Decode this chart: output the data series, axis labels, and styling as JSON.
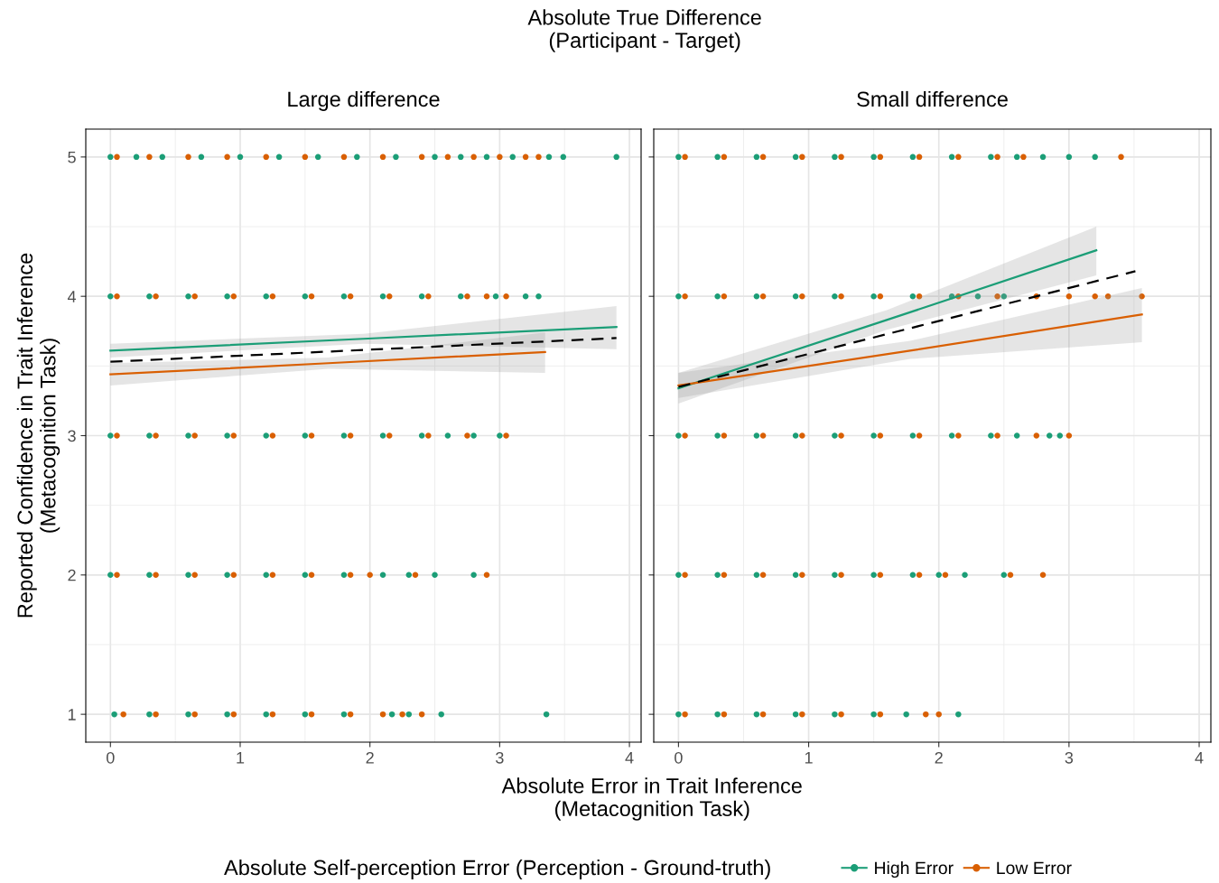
{
  "chart_data": [
    {
      "type": "scatter",
      "title": "Large difference",
      "annotations": [
        "Absolute True Difference\n(Participant - Target)"
      ],
      "xlabel": "Absolute Error in Trait Inference\n(Metacognition Task)",
      "ylabel": "Reported Confidence in Trait Inference\n(Metacognition Task)",
      "legend_title": "Absolute Self-perception Error (Perception - Ground-truth)",
      "legend": "bottom",
      "grid": true,
      "xlim": [
        -0.19,
        4.09
      ],
      "ylim": [
        0.8,
        5.2
      ],
      "xticks": [
        0,
        1,
        2,
        3,
        4
      ],
      "yticks": [
        1,
        2,
        3,
        4,
        5
      ],
      "series": [
        {
          "name": "High Error",
          "marker": "circle",
          "color": "#1b9e77",
          "x": [
            0,
            0.2,
            0.4,
            0.7,
            1.0,
            1.3,
            1.6,
            1.9,
            2.2,
            2.5,
            2.7,
            2.9,
            3.1,
            3.38,
            3.49,
            3.9,
            0,
            0.3,
            0.6,
            0.9,
            1.2,
            1.5,
            1.8,
            2.1,
            2.4,
            2.7,
            2.97,
            3.2,
            3.3,
            0,
            0.3,
            0.6,
            0.9,
            1.2,
            1.5,
            1.8,
            2.1,
            2.4,
            2.6,
            2.8,
            3.0,
            0,
            0.3,
            0.6,
            0.9,
            1.2,
            1.5,
            1.8,
            2.1,
            2.3,
            2.5,
            2.8,
            0.03,
            0.3,
            0.6,
            0.9,
            1.2,
            1.5,
            1.8,
            2.17,
            2.3,
            2.55,
            3.36
          ],
          "values": [
            5,
            5,
            5,
            5,
            5,
            5,
            5,
            5,
            5,
            5,
            5,
            5,
            5,
            5,
            5,
            5,
            4,
            4,
            4,
            4,
            4,
            4,
            4,
            4,
            4,
            4,
            4,
            4,
            4,
            3,
            3,
            3,
            3,
            3,
            3,
            3,
            3,
            3,
            3,
            3,
            3,
            2,
            2,
            2,
            2,
            2,
            2,
            2,
            2,
            2,
            2,
            2,
            1,
            1,
            1,
            1,
            1,
            1,
            1,
            1,
            1,
            1,
            1
          ]
        },
        {
          "name": "Low Error",
          "marker": "circle",
          "color": "#d95f02",
          "x": [
            0.05,
            0.3,
            0.6,
            0.9,
            1.2,
            1.5,
            1.8,
            2.1,
            2.4,
            2.6,
            2.8,
            3.0,
            3.2,
            3.3,
            0.05,
            0.35,
            0.65,
            0.95,
            1.25,
            1.55,
            1.85,
            2.15,
            2.45,
            2.75,
            2.9,
            3.05,
            0.05,
            0.35,
            0.65,
            0.95,
            1.25,
            1.55,
            1.85,
            2.15,
            2.45,
            2.75,
            3.05,
            0.05,
            0.35,
            0.65,
            0.95,
            1.25,
            1.55,
            1.85,
            2.0,
            2.35,
            2.9,
            0.1,
            0.35,
            0.65,
            0.95,
            1.25,
            1.55,
            1.85,
            2.1,
            2.25,
            2.4
          ],
          "values": [
            5,
            5,
            5,
            5,
            5,
            5,
            5,
            5,
            5,
            5,
            5,
            5,
            5,
            5,
            4,
            4,
            4,
            4,
            4,
            4,
            4,
            4,
            4,
            4,
            4,
            4,
            3,
            3,
            3,
            3,
            3,
            3,
            3,
            3,
            3,
            3,
            3,
            2,
            2,
            2,
            2,
            2,
            2,
            2,
            2,
            2,
            2,
            1,
            1,
            1,
            1,
            1,
            1,
            1,
            1,
            1,
            1
          ]
        },
        {
          "type": "line",
          "color": "#1b9e77",
          "x": [
            0,
            1.95,
            3.9
          ],
          "values": [
            3.61,
            3.695,
            3.78
          ],
          "lower": [
            3.56,
            3.66,
            3.62
          ],
          "upper": [
            3.66,
            3.73,
            3.93
          ]
        },
        {
          "type": "line",
          "color": "#d95f02",
          "x": [
            0,
            1.68,
            3.35
          ],
          "values": [
            3.44,
            3.52,
            3.6
          ],
          "lower": [
            3.36,
            3.48,
            3.45
          ],
          "upper": [
            3.52,
            3.56,
            3.74
          ]
        },
        {
          "type": "line",
          "color": "#000000",
          "line_style": "dashed",
          "x": [
            0,
            3.9
          ],
          "values": [
            3.53,
            3.7
          ]
        }
      ]
    },
    {
      "type": "scatter",
      "title": "Small difference",
      "grid": true,
      "tick_labels": "x",
      "xlim": [
        -0.19,
        4.09
      ],
      "ylim": [
        0.8,
        5.2
      ],
      "xticks": [
        0,
        1,
        2,
        3,
        4
      ],
      "yticks": [
        1,
        2,
        3,
        4,
        5
      ],
      "series": [
        {
          "marker": "circle",
          "color": "#1b9e77",
          "x": [
            0,
            0.3,
            0.6,
            0.9,
            1.2,
            1.5,
            1.8,
            2.1,
            2.4,
            2.6,
            2.8,
            3.0,
            3.2,
            0,
            0.3,
            0.6,
            0.9,
            1.2,
            1.5,
            1.8,
            2.1,
            2.3,
            2.5,
            0,
            0.3,
            0.6,
            0.9,
            1.2,
            1.5,
            1.8,
            2.1,
            2.4,
            2.6,
            2.85,
            2.93,
            0,
            0.3,
            0.6,
            0.9,
            1.2,
            1.5,
            1.8,
            2.0,
            2.2,
            2.5,
            0,
            0.3,
            0.6,
            0.9,
            1.2,
            1.5,
            1.75,
            2.15
          ],
          "values": [
            5,
            5,
            5,
            5,
            5,
            5,
            5,
            5,
            5,
            5,
            5,
            5,
            5,
            4,
            4,
            4,
            4,
            4,
            4,
            4,
            4,
            4,
            4,
            3,
            3,
            3,
            3,
            3,
            3,
            3,
            3,
            3,
            3,
            3,
            3,
            2,
            2,
            2,
            2,
            2,
            2,
            2,
            2,
            2,
            2,
            1,
            1,
            1,
            1,
            1,
            1,
            1,
            1
          ]
        },
        {
          "marker": "circle",
          "color": "#d95f02",
          "x": [
            0.05,
            0.35,
            0.65,
            0.95,
            1.25,
            1.55,
            1.85,
            2.15,
            2.45,
            2.65,
            3.4,
            0.05,
            0.35,
            0.65,
            0.95,
            1.25,
            1.55,
            1.85,
            2.15,
            2.45,
            2.75,
            3.0,
            3.2,
            3.3,
            3.56,
            0.05,
            0.35,
            0.65,
            0.95,
            1.25,
            1.55,
            1.85,
            2.15,
            2.45,
            2.75,
            3.0,
            0.05,
            0.35,
            0.65,
            0.95,
            1.25,
            1.55,
            1.85,
            2.05,
            2.55,
            2.8,
            0.05,
            0.35,
            0.65,
            0.95,
            1.25,
            1.55,
            1.9,
            2.0
          ],
          "values": [
            5,
            5,
            5,
            5,
            5,
            5,
            5,
            5,
            5,
            5,
            5,
            4,
            4,
            4,
            4,
            4,
            4,
            4,
            4,
            4,
            4,
            4,
            4,
            4,
            4,
            3,
            3,
            3,
            3,
            3,
            3,
            3,
            3,
            3,
            3,
            3,
            2,
            2,
            2,
            2,
            2,
            2,
            2,
            2,
            2,
            2,
            1,
            1,
            1,
            1,
            1,
            1,
            1,
            1
          ]
        },
        {
          "type": "line",
          "color": "#1b9e77",
          "x": [
            0,
            1.6,
            3.21
          ],
          "values": [
            3.34,
            3.83,
            4.33
          ],
          "lower": [
            3.23,
            3.76,
            4.15
          ],
          "upper": [
            3.45,
            3.9,
            4.5
          ]
        },
        {
          "type": "line",
          "color": "#d95f02",
          "x": [
            0,
            1.78,
            3.56
          ],
          "values": [
            3.36,
            3.61,
            3.87
          ],
          "lower": [
            3.27,
            3.55,
            3.67
          ],
          "upper": [
            3.45,
            3.68,
            4.06
          ]
        },
        {
          "type": "line",
          "color": "#000000",
          "line_style": "dashed",
          "x": [
            0,
            3.51
          ],
          "values": [
            3.35,
            4.18
          ]
        }
      ]
    }
  ]
}
